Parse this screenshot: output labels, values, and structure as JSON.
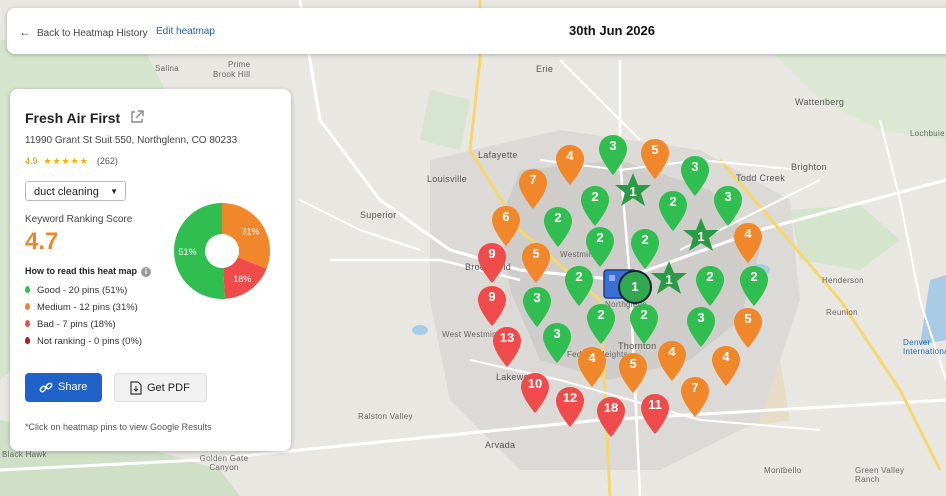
{
  "header": {
    "back_label": "Back to Heatmap History",
    "edit_label": "Edit heatmap",
    "date": "30th Jun 2026"
  },
  "business": {
    "name": "Fresh Air First",
    "address": "11990 Grant St Suit 550, Northglenn, CO 80233",
    "rating": "4.9",
    "stars": "★★★★★",
    "reviews": "(262)"
  },
  "keyword": {
    "selected": "duct cleaning"
  },
  "score": {
    "label": "Keyword Ranking Score",
    "value": "4.7"
  },
  "howto": {
    "title": "How to read this heat map"
  },
  "legend": [
    {
      "label": "Good - 20 pins (51%)",
      "color": "#2fbe4f"
    },
    {
      "label": "Medium - 12 pins (31%)",
      "color": "#f0872a"
    },
    {
      "label": "Bad - 7 pins (18%)",
      "color": "#ef4b4b"
    },
    {
      "label": "Not ranking - 0 pins (0%)",
      "color": "#a81c1c"
    }
  ],
  "chart_data": {
    "type": "pie",
    "categories": [
      "Good",
      "Medium",
      "Bad"
    ],
    "values": [
      51,
      31,
      18
    ],
    "labels": [
      "51%",
      "31%",
      "18%"
    ],
    "colors": [
      "#2fbe4f",
      "#f0872a",
      "#ef4b4b"
    ]
  },
  "actions": {
    "share": "Share",
    "pdf": "Get PDF"
  },
  "footnote": "*Click on heatmap pins to view Google Results",
  "map": {
    "labels": [
      "Salina",
      "Prime",
      "Brook Hill",
      "Erie",
      "Wattenberg",
      "Lafayette",
      "Louisville",
      "Brighton",
      "Todd Creek",
      "Superior",
      "Broomfield",
      "Westminster",
      "Henderson",
      "Reunion",
      "West Westminster",
      "Thornton",
      "Lakewood",
      "Arvada",
      "Ralston Valley",
      "Golden Gate Canyon",
      "Black Hawk",
      "Montbello",
      "Green Valley Ranch",
      "Denver International",
      "Lochbuie",
      "Federal Heights",
      "Northglenn"
    ],
    "center_pin": "1",
    "stars": [
      "1",
      "1",
      "1"
    ],
    "pins": [
      {
        "rank": "3",
        "status": "good"
      },
      {
        "rank": "5",
        "status": "medium"
      },
      {
        "rank": "4",
        "status": "medium"
      },
      {
        "rank": "3",
        "status": "good"
      },
      {
        "rank": "7",
        "status": "medium"
      },
      {
        "rank": "2",
        "status": "good"
      },
      {
        "rank": "2",
        "status": "good"
      },
      {
        "rank": "3",
        "status": "good"
      },
      {
        "rank": "6",
        "status": "medium"
      },
      {
        "rank": "2",
        "status": "good"
      },
      {
        "rank": "2",
        "status": "good"
      },
      {
        "rank": "2",
        "status": "good"
      },
      {
        "rank": "4",
        "status": "medium"
      },
      {
        "rank": "9",
        "status": "bad"
      },
      {
        "rank": "5",
        "status": "medium"
      },
      {
        "rank": "2",
        "status": "good"
      },
      {
        "rank": "2",
        "status": "good"
      },
      {
        "rank": "2",
        "status": "good"
      },
      {
        "rank": "9",
        "status": "bad"
      },
      {
        "rank": "3",
        "status": "good"
      },
      {
        "rank": "2",
        "status": "good"
      },
      {
        "rank": "2",
        "status": "good"
      },
      {
        "rank": "3",
        "status": "good"
      },
      {
        "rank": "5",
        "status": "medium"
      },
      {
        "rank": "13",
        "status": "bad"
      },
      {
        "rank": "3",
        "status": "good"
      },
      {
        "rank": "4",
        "status": "medium"
      },
      {
        "rank": "4",
        "status": "medium"
      },
      {
        "rank": "4",
        "status": "medium"
      },
      {
        "rank": "5",
        "status": "medium"
      },
      {
        "rank": "10",
        "status": "bad"
      },
      {
        "rank": "7",
        "status": "medium"
      },
      {
        "rank": "12",
        "status": "bad"
      },
      {
        "rank": "18",
        "status": "bad"
      },
      {
        "rank": "11",
        "status": "bad"
      }
    ]
  }
}
